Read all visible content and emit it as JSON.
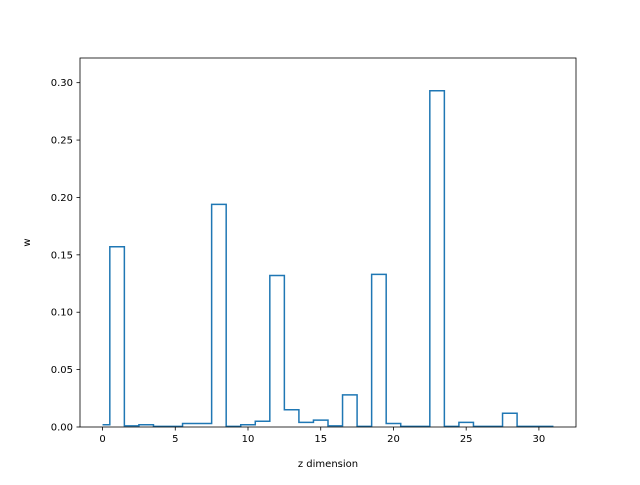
{
  "chart_data": {
    "type": "step",
    "xlabel": "z dimension",
    "ylabel": "w",
    "xlim": [
      -1.55,
      32.55
    ],
    "ylim": [
      0,
      0.3215
    ],
    "xticks": [
      0,
      5,
      10,
      15,
      20,
      25,
      30
    ],
    "yticks": [
      0.0,
      0.05,
      0.1,
      0.15,
      0.2,
      0.25,
      0.3
    ],
    "ytick_labels": [
      "0.00",
      "0.05",
      "0.10",
      "0.15",
      "0.20",
      "0.25",
      "0.30"
    ],
    "grid": false,
    "color": "#1f77b4",
    "step_where": "mid",
    "x": [
      0,
      1,
      2,
      3,
      4,
      5,
      6,
      7,
      8,
      9,
      10,
      11,
      12,
      13,
      14,
      15,
      16,
      17,
      18,
      19,
      20,
      21,
      22,
      23,
      24,
      25,
      26,
      27,
      28,
      29,
      30,
      31
    ],
    "values": [
      0.002,
      0.157,
      0.001,
      0.002,
      0.0005,
      0.0005,
      0.003,
      0.003,
      0.194,
      0.0005,
      0.002,
      0.005,
      0.132,
      0.015,
      0.004,
      0.006,
      0.001,
      0.028,
      0.0005,
      0.133,
      0.003,
      0.0005,
      0.0005,
      0.293,
      0.0005,
      0.004,
      0.0005,
      0.0005,
      0.012,
      0.0005,
      0.0005,
      0.0005
    ]
  }
}
